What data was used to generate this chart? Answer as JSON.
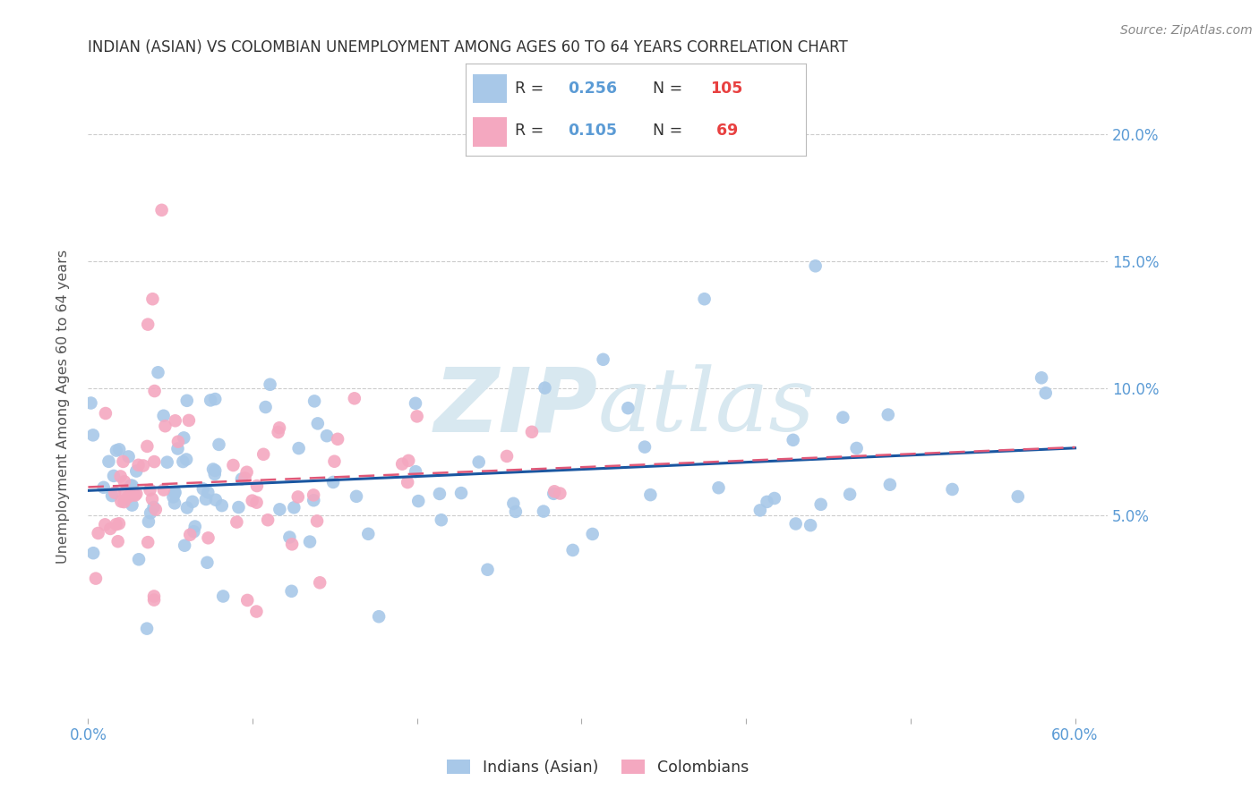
{
  "title": "INDIAN (ASIAN) VS COLOMBIAN UNEMPLOYMENT AMONG AGES 60 TO 64 YEARS CORRELATION CHART",
  "source": "Source: ZipAtlas.com",
  "ylabel": "Unemployment Among Ages 60 to 64 years",
  "xlim": [
    0.0,
    0.62
  ],
  "ylim": [
    -0.03,
    0.215
  ],
  "yticks": [
    0.0,
    0.05,
    0.1,
    0.15,
    0.2
  ],
  "ytick_labels": [
    "",
    "5.0%",
    "10.0%",
    "15.0%",
    "20.0%"
  ],
  "xtick_labels": [
    "0.0%",
    "",
    "",
    "",
    "",
    "",
    "60.0%"
  ],
  "indian_color": "#a8c8e8",
  "colombian_color": "#f4a8c0",
  "indian_line_color": "#1a56a0",
  "colombian_line_color": "#e05878",
  "background_color": "#ffffff",
  "grid_color": "#cccccc",
  "axis_tick_color": "#5b9bd5",
  "watermark_text": "ZIPatlas",
  "watermark_color": "#d8e8f0",
  "title_color": "#333333",
  "ylabel_color": "#555555",
  "source_color": "#888888",
  "legend_text_color": "#333333",
  "legend_r_value_color": "#5b9bd5",
  "legend_n_value_color": "#e84040"
}
